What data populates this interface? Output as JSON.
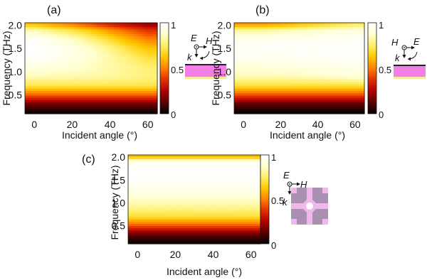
{
  "colormap": [
    "#000000",
    "#5a0000",
    "#b00000",
    "#e23000",
    "#ff8000",
    "#ffc800",
    "#ffee66",
    "#ffffd0",
    "#ffffff"
  ],
  "substrate_colors": {
    "pink": "#f27ee6",
    "line": "#222222",
    "yellow": "#f2ee9c"
  },
  "unit_cell_colors": {
    "background": "#a990b0",
    "pattern": "#f0b8ea",
    "hole": "#ffffff"
  },
  "chart_data": [
    {
      "type": "heatmap",
      "panel_label": "(a)",
      "xlabel": "Incident angle (°)",
      "ylabel": "Frequency (THz)",
      "xlim": [
        -5,
        65
      ],
      "ylim": [
        0.1,
        2.05
      ],
      "xticks": [
        "0",
        "20",
        "40",
        "60"
      ],
      "yticks": [
        "0.5",
        "1.0",
        "1.5",
        "2.0"
      ],
      "colorbar": {
        "range": [
          0,
          1
        ],
        "tick_labels": [
          "1",
          "0.5",
          "0"
        ]
      },
      "inset": {
        "type": "substrate",
        "labels": {
          "E": "E",
          "H": "H",
          "k": "k"
        }
      },
      "data": {
        "x": [
          0,
          10,
          20,
          30,
          40,
          50,
          60
        ],
        "y": [
          0.1,
          0.3,
          0.5,
          0.7,
          0.9,
          1.1,
          1.3,
          1.5,
          1.7,
          1.9,
          2.0
        ],
        "z": [
          [
            0.0,
            0.0,
            0.0,
            0.0,
            0.0,
            0.0,
            0.0
          ],
          [
            0.15,
            0.15,
            0.15,
            0.15,
            0.15,
            0.15,
            0.15
          ],
          [
            0.45,
            0.45,
            0.45,
            0.45,
            0.45,
            0.45,
            0.45
          ],
          [
            0.72,
            0.72,
            0.72,
            0.72,
            0.72,
            0.72,
            0.72
          ],
          [
            0.85,
            0.84,
            0.84,
            0.83,
            0.82,
            0.8,
            0.78
          ],
          [
            0.92,
            0.9,
            0.88,
            0.86,
            0.83,
            0.8,
            0.76
          ],
          [
            0.98,
            0.96,
            0.93,
            0.88,
            0.83,
            0.77,
            0.7
          ],
          [
            1.0,
            0.98,
            0.93,
            0.87,
            0.79,
            0.7,
            0.62
          ],
          [
            0.98,
            0.92,
            0.86,
            0.78,
            0.68,
            0.58,
            0.5
          ],
          [
            0.82,
            0.76,
            0.7,
            0.62,
            0.52,
            0.44,
            0.36
          ],
          [
            0.62,
            0.56,
            0.5,
            0.42,
            0.34,
            0.28,
            0.22
          ]
        ]
      }
    },
    {
      "type": "heatmap",
      "panel_label": "(b)",
      "xlabel": "Incident angle (°)",
      "ylabel": "Frequency (THz)",
      "xlim": [
        -5,
        65
      ],
      "ylim": [
        0.1,
        2.05
      ],
      "xticks": [
        "0",
        "20",
        "40",
        "60"
      ],
      "yticks": [
        "0.5",
        "1.0",
        "1.5",
        "2.0"
      ],
      "colorbar": {
        "range": [
          0,
          1
        ],
        "tick_labels": [
          "1",
          "0.5",
          "0"
        ]
      },
      "inset": {
        "type": "substrate",
        "labels": {
          "E": "E",
          "H": "H",
          "k": "k"
        }
      },
      "data": {
        "x": [
          0,
          10,
          20,
          30,
          40,
          50,
          60
        ],
        "y": [
          0.1,
          0.3,
          0.5,
          0.7,
          0.9,
          1.1,
          1.3,
          1.5,
          1.7,
          1.9,
          2.0
        ],
        "z": [
          [
            0.0,
            0.0,
            0.0,
            0.0,
            0.0,
            0.0,
            0.0
          ],
          [
            0.12,
            0.12,
            0.12,
            0.12,
            0.12,
            0.12,
            0.12
          ],
          [
            0.42,
            0.42,
            0.42,
            0.42,
            0.42,
            0.42,
            0.42
          ],
          [
            0.7,
            0.7,
            0.7,
            0.7,
            0.7,
            0.7,
            0.7
          ],
          [
            0.84,
            0.84,
            0.84,
            0.85,
            0.86,
            0.88,
            0.9
          ],
          [
            0.9,
            0.9,
            0.91,
            0.92,
            0.93,
            0.94,
            0.95
          ],
          [
            0.96,
            0.96,
            0.96,
            0.97,
            0.97,
            0.98,
            0.98
          ],
          [
            0.99,
            0.99,
            0.99,
            0.99,
            0.99,
            0.99,
            0.99
          ],
          [
            0.95,
            0.95,
            0.96,
            0.96,
            0.97,
            0.97,
            0.98
          ],
          [
            0.8,
            0.8,
            0.82,
            0.84,
            0.86,
            0.88,
            0.9
          ],
          [
            0.55,
            0.55,
            0.58,
            0.62,
            0.66,
            0.7,
            0.74
          ]
        ]
      }
    },
    {
      "type": "heatmap",
      "panel_label": "(c)",
      "xlabel": "Incident angle (°)",
      "ylabel": "Frequency (THz)",
      "xlim": [
        -5,
        65
      ],
      "ylim": [
        0.1,
        2.05
      ],
      "xticks": [
        "0",
        "20",
        "40",
        "60"
      ],
      "yticks": [
        "0.5",
        "1.0",
        "1.5",
        "2.0"
      ],
      "colorbar": {
        "range": [
          0,
          1
        ],
        "tick_labels": [
          "1",
          "0.5",
          "0"
        ]
      },
      "inset": {
        "type": "unit-cell",
        "labels": {
          "E": "E",
          "H": "H",
          "k": "k"
        }
      },
      "data": {
        "x": [
          0,
          10,
          20,
          30,
          40,
          50,
          60
        ],
        "y": [
          0.1,
          0.3,
          0.5,
          0.7,
          0.9,
          1.1,
          1.3,
          1.5,
          1.7,
          1.9,
          2.0
        ],
        "z": [
          [
            0.0,
            0.0,
            0.0,
            0.0,
            0.0,
            0.0,
            0.0
          ],
          [
            0.14,
            0.14,
            0.14,
            0.14,
            0.14,
            0.14,
            0.14
          ],
          [
            0.44,
            0.44,
            0.44,
            0.44,
            0.44,
            0.44,
            0.44
          ],
          [
            0.7,
            0.7,
            0.7,
            0.7,
            0.7,
            0.7,
            0.7
          ],
          [
            0.8,
            0.8,
            0.8,
            0.8,
            0.8,
            0.8,
            0.8
          ],
          [
            0.88,
            0.88,
            0.88,
            0.88,
            0.88,
            0.88,
            0.88
          ],
          [
            0.95,
            0.95,
            0.95,
            0.95,
            0.95,
            0.95,
            0.95
          ],
          [
            0.99,
            0.99,
            0.99,
            0.99,
            0.99,
            0.99,
            0.99
          ],
          [
            1.0,
            1.0,
            1.0,
            1.0,
            1.0,
            1.0,
            1.0
          ],
          [
            0.96,
            0.96,
            0.96,
            0.96,
            0.96,
            0.96,
            0.96
          ],
          [
            0.6,
            0.6,
            0.6,
            0.6,
            0.6,
            0.6,
            0.6
          ]
        ]
      }
    }
  ]
}
